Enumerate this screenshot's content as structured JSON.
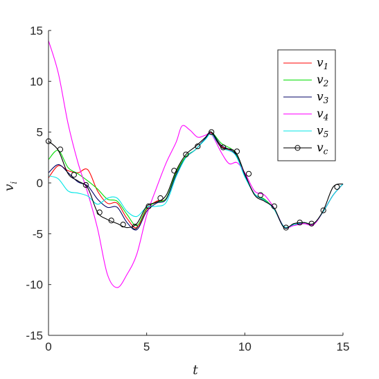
{
  "chart_data": {
    "type": "line",
    "title": "",
    "xlabel": "t",
    "ylabel": "v",
    "ylabel_sub": "i",
    "xlim": [
      0,
      15
    ],
    "ylim": [
      -15,
      15
    ],
    "xticks": [
      0,
      5,
      10,
      15
    ],
    "xtick_labels": [
      "0",
      "5",
      "10",
      "15"
    ],
    "yticks": [
      -15,
      -10,
      -5,
      0,
      5,
      10,
      15
    ],
    "ytick_labels": [
      "-15",
      "-10",
      "-5",
      "0",
      "5",
      "10",
      "15"
    ],
    "grid": false,
    "legend_position": "top-right",
    "series": [
      {
        "name": "v",
        "sub": "1",
        "color": "#ff0000",
        "marker": "none",
        "points": [
          [
            0,
            0.5
          ],
          [
            0.5,
            1.7
          ],
          [
            1,
            1.2
          ],
          [
            1.5,
            1.0
          ],
          [
            2,
            1.3
          ],
          [
            2.5,
            -0.8
          ],
          [
            3,
            -2.0
          ],
          [
            3.5,
            -2.0
          ],
          [
            4,
            -3.5
          ],
          [
            4.5,
            -4.4
          ],
          [
            5,
            -2.6
          ],
          [
            5.5,
            -1.8
          ],
          [
            6,
            -1.5
          ],
          [
            6.5,
            1.0
          ],
          [
            7,
            2.6
          ],
          [
            7.5,
            3.3
          ],
          [
            8,
            4.4
          ],
          [
            8.3,
            4.9
          ],
          [
            8.8,
            3.6
          ],
          [
            9.5,
            2.9
          ],
          [
            10,
            0.7
          ],
          [
            10.5,
            -1.1
          ],
          [
            11,
            -1.7
          ],
          [
            11.5,
            -2.6
          ],
          [
            12,
            -4.3
          ],
          [
            12.5,
            -4.1
          ],
          [
            13,
            -3.9
          ],
          [
            13.5,
            -4.0
          ],
          [
            14,
            -2.8
          ],
          [
            14.5,
            -1.2
          ],
          [
            15,
            -0.1
          ]
        ]
      },
      {
        "name": "v",
        "sub": "2",
        "color": "#00dd00",
        "marker": "none",
        "points": [
          [
            0,
            2.3
          ],
          [
            0.5,
            3.2
          ],
          [
            1,
            1.5
          ],
          [
            1.5,
            0.9
          ],
          [
            2,
            0.2
          ],
          [
            2.5,
            -0.6
          ],
          [
            3,
            -1.6
          ],
          [
            3.5,
            -1.8
          ],
          [
            4,
            -3.1
          ],
          [
            4.5,
            -4.2
          ],
          [
            5,
            -2.5
          ],
          [
            5.5,
            -1.9
          ],
          [
            6,
            -1.5
          ],
          [
            6.5,
            1.0
          ],
          [
            7,
            2.6
          ],
          [
            7.5,
            3.3
          ],
          [
            8,
            4.4
          ],
          [
            8.3,
            5.0
          ],
          [
            8.8,
            3.9
          ],
          [
            9.5,
            3.0
          ],
          [
            10,
            0.7
          ],
          [
            10.5,
            -1.1
          ],
          [
            11,
            -1.6
          ],
          [
            11.5,
            -2.6
          ],
          [
            12,
            -4.3
          ],
          [
            12.5,
            -4.1
          ],
          [
            13,
            -3.9
          ],
          [
            13.5,
            -4.0
          ],
          [
            14,
            -2.8
          ],
          [
            14.5,
            -1.2
          ],
          [
            15,
            -0.1
          ]
        ]
      },
      {
        "name": "v",
        "sub": "3",
        "color": "#000066",
        "marker": "none",
        "points": [
          [
            0,
            1.0
          ],
          [
            0.5,
            1.8
          ],
          [
            1,
            1.0
          ],
          [
            1.5,
            0.1
          ],
          [
            2,
            -0.3
          ],
          [
            2.5,
            -1.6
          ],
          [
            3,
            -2.4
          ],
          [
            3.5,
            -2.4
          ],
          [
            4,
            -3.9
          ],
          [
            4.5,
            -4.6
          ],
          [
            5,
            -2.8
          ],
          [
            5.5,
            -2.0
          ],
          [
            6,
            -1.6
          ],
          [
            6.5,
            0.8
          ],
          [
            7,
            2.5
          ],
          [
            7.5,
            3.3
          ],
          [
            8,
            4.4
          ],
          [
            8.3,
            5.0
          ],
          [
            8.8,
            3.7
          ],
          [
            9.5,
            2.9
          ],
          [
            10,
            0.7
          ],
          [
            10.5,
            -1.1
          ],
          [
            11,
            -1.7
          ],
          [
            11.5,
            -2.6
          ],
          [
            12,
            -4.4
          ],
          [
            12.5,
            -4.1
          ],
          [
            13,
            -4.0
          ],
          [
            13.5,
            -4.1
          ],
          [
            14,
            -2.8
          ],
          [
            14.5,
            -1.2
          ],
          [
            15,
            -0.1
          ]
        ]
      },
      {
        "name": "v",
        "sub": "4",
        "color": "#ff00ff",
        "marker": "none",
        "points": [
          [
            0,
            14.0
          ],
          [
            0.5,
            10.8
          ],
          [
            1,
            5.8
          ],
          [
            1.5,
            2.0
          ],
          [
            2,
            -1.0
          ],
          [
            2.5,
            -4.5
          ],
          [
            3,
            -9.0
          ],
          [
            3.5,
            -10.3
          ],
          [
            4,
            -9.0
          ],
          [
            4.5,
            -7.0
          ],
          [
            5,
            -3.2
          ],
          [
            5.5,
            -0.5
          ],
          [
            6,
            2.0
          ],
          [
            6.5,
            4.0
          ],
          [
            6.8,
            5.6
          ],
          [
            7.2,
            5.2
          ],
          [
            7.6,
            4.5
          ],
          [
            8,
            4.7
          ],
          [
            8.3,
            4.8
          ],
          [
            8.8,
            3.0
          ],
          [
            9.2,
            1.9
          ],
          [
            9.6,
            2.0
          ],
          [
            10,
            1.0
          ],
          [
            10.5,
            -0.8
          ],
          [
            11,
            -1.2
          ],
          [
            11.5,
            -2.5
          ],
          [
            12,
            -4.3
          ],
          [
            12.5,
            -4.2
          ],
          [
            13,
            -4.0
          ],
          [
            13.5,
            -4.1
          ],
          [
            14,
            -2.8
          ],
          [
            14.5,
            -1.2
          ],
          [
            15,
            -0.1
          ]
        ]
      },
      {
        "name": "v",
        "sub": "5",
        "color": "#00e6e6",
        "marker": "none",
        "points": [
          [
            0,
            0.7
          ],
          [
            0.5,
            0.4
          ],
          [
            1,
            -0.8
          ],
          [
            1.5,
            -1.0
          ],
          [
            2,
            -1.3
          ],
          [
            2.5,
            -2.1
          ],
          [
            3,
            -1.5
          ],
          [
            3.5,
            -1.5
          ],
          [
            4,
            -2.8
          ],
          [
            4.5,
            -3.3
          ],
          [
            5,
            -2.4
          ],
          [
            5.5,
            -2.3
          ],
          [
            6,
            -1.9
          ],
          [
            6.5,
            0.6
          ],
          [
            7,
            2.5
          ],
          [
            7.5,
            3.3
          ],
          [
            8,
            4.3
          ],
          [
            8.3,
            4.8
          ],
          [
            8.8,
            3.5
          ],
          [
            9.5,
            2.8
          ],
          [
            10,
            0.6
          ],
          [
            10.5,
            -1.1
          ],
          [
            11,
            -1.7
          ],
          [
            11.5,
            -2.6
          ],
          [
            12,
            -4.3
          ],
          [
            12.5,
            -4.1
          ],
          [
            13,
            -3.9
          ],
          [
            13.5,
            -4.0
          ],
          [
            14,
            -2.8
          ],
          [
            14.5,
            -1.2
          ],
          [
            15,
            -0.1
          ]
        ]
      },
      {
        "name": "v",
        "sub": "c",
        "color": "#000000",
        "marker": "circle",
        "points": [
          [
            0,
            4.1
          ],
          [
            0.5,
            3.2
          ],
          [
            1,
            0.9
          ],
          [
            1.5,
            0.2
          ],
          [
            2,
            -0.5
          ],
          [
            2.5,
            -2.9
          ],
          [
            3,
            -3.6
          ],
          [
            3.5,
            -4.0
          ],
          [
            4,
            -4.4
          ],
          [
            4.5,
            -4.0
          ],
          [
            5,
            -2.3
          ],
          [
            5.5,
            -1.9
          ],
          [
            6,
            -1.2
          ],
          [
            6.5,
            1.2
          ],
          [
            7,
            2.8
          ],
          [
            7.5,
            3.6
          ],
          [
            8,
            4.5
          ],
          [
            8.3,
            5.0
          ],
          [
            8.8,
            3.5
          ],
          [
            9.5,
            3.1
          ],
          [
            10,
            0.9
          ],
          [
            10.5,
            -1.2
          ],
          [
            11,
            -1.8
          ],
          [
            11.5,
            -2.5
          ],
          [
            12,
            -4.4
          ],
          [
            12.5,
            -4.0
          ],
          [
            13,
            -3.9
          ],
          [
            13.5,
            -4.0
          ],
          [
            14,
            -2.7
          ],
          [
            14.5,
            -0.4
          ],
          [
            15,
            -0.1
          ]
        ],
        "marker_points": [
          [
            0,
            4.1
          ],
          [
            0.6,
            3.3
          ],
          [
            1.3,
            0.8
          ],
          [
            1.9,
            -0.2
          ],
          [
            2.6,
            -2.9
          ],
          [
            3.2,
            -3.7
          ],
          [
            3.8,
            -4.1
          ],
          [
            4.4,
            -4.3
          ],
          [
            5.1,
            -2.3
          ],
          [
            5.7,
            -1.5
          ],
          [
            6.4,
            1.2
          ],
          [
            7,
            2.8
          ],
          [
            7.6,
            3.6
          ],
          [
            8.3,
            5.0
          ],
          [
            8.9,
            3.5
          ],
          [
            9.6,
            3.1
          ],
          [
            10.2,
            0.9
          ],
          [
            10.8,
            -1.2
          ],
          [
            11.5,
            -2.3
          ],
          [
            12.1,
            -4.4
          ],
          [
            12.8,
            -3.9
          ],
          [
            13.4,
            -4.0
          ],
          [
            14,
            -2.7
          ],
          [
            14.7,
            -0.4
          ]
        ]
      }
    ]
  }
}
